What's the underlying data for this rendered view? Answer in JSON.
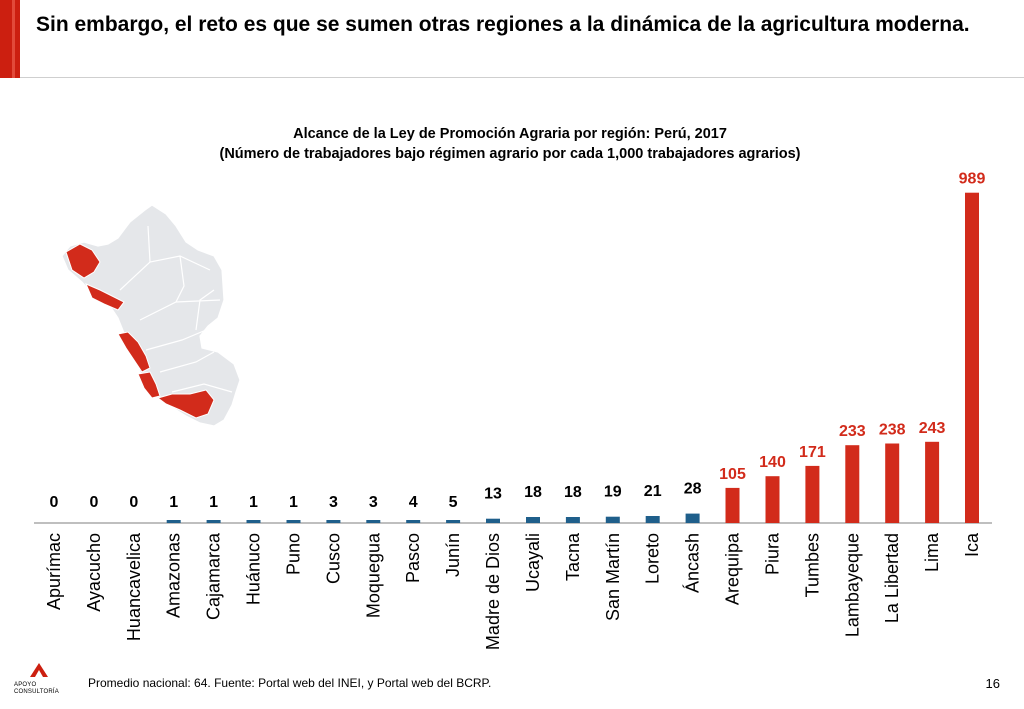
{
  "slide": {
    "title": "Sin embargo, el reto es que se sumen otras regiones a la dinámica de la agricultura moderna.",
    "footnote": "Promedio nacional: 64. Fuente: Portal web del INEI, y Portal web del BCRP.",
    "page_number": "16",
    "logo_text": "APOYO CONSULTORÍA"
  },
  "chart_data": {
    "type": "bar",
    "title_line1": "Alcance de la Ley de Promoción Agraria por región: Perú, 2017",
    "title_line2": "(Número de trabajadores bajo régimen agrario por cada 1,000 trabajadores agrarios)",
    "categories": [
      "Apurímac",
      "Ayacucho",
      "Huancavelica",
      "Amazonas",
      "Cajamarca",
      "Huánuco",
      "Puno",
      "Cusco",
      "Moquegua",
      "Pasco",
      "Junín",
      "Madre de Dios",
      "Ucayali",
      "Tacna",
      "San Martín",
      "Loreto",
      "Áncash",
      "Arequipa",
      "Piura",
      "Tumbes",
      "Lambayeque",
      "La Libertad",
      "Lima",
      "Ica"
    ],
    "values": [
      0,
      0,
      0,
      1,
      1,
      1,
      1,
      3,
      3,
      4,
      5,
      13,
      18,
      18,
      19,
      21,
      28,
      105,
      140,
      171,
      233,
      238,
      243,
      989
    ],
    "highlight_from_index": 17,
    "ylim": [
      0,
      1000
    ],
    "colors": {
      "low": "#1f5f8b",
      "high": "#d22b1b",
      "label_low": "#000000",
      "label_high": "#d22b1b"
    }
  },
  "map": {
    "highlight_color": "#d22b1b",
    "base_color": "#e5e7ea",
    "border_color": "#ffffff"
  }
}
